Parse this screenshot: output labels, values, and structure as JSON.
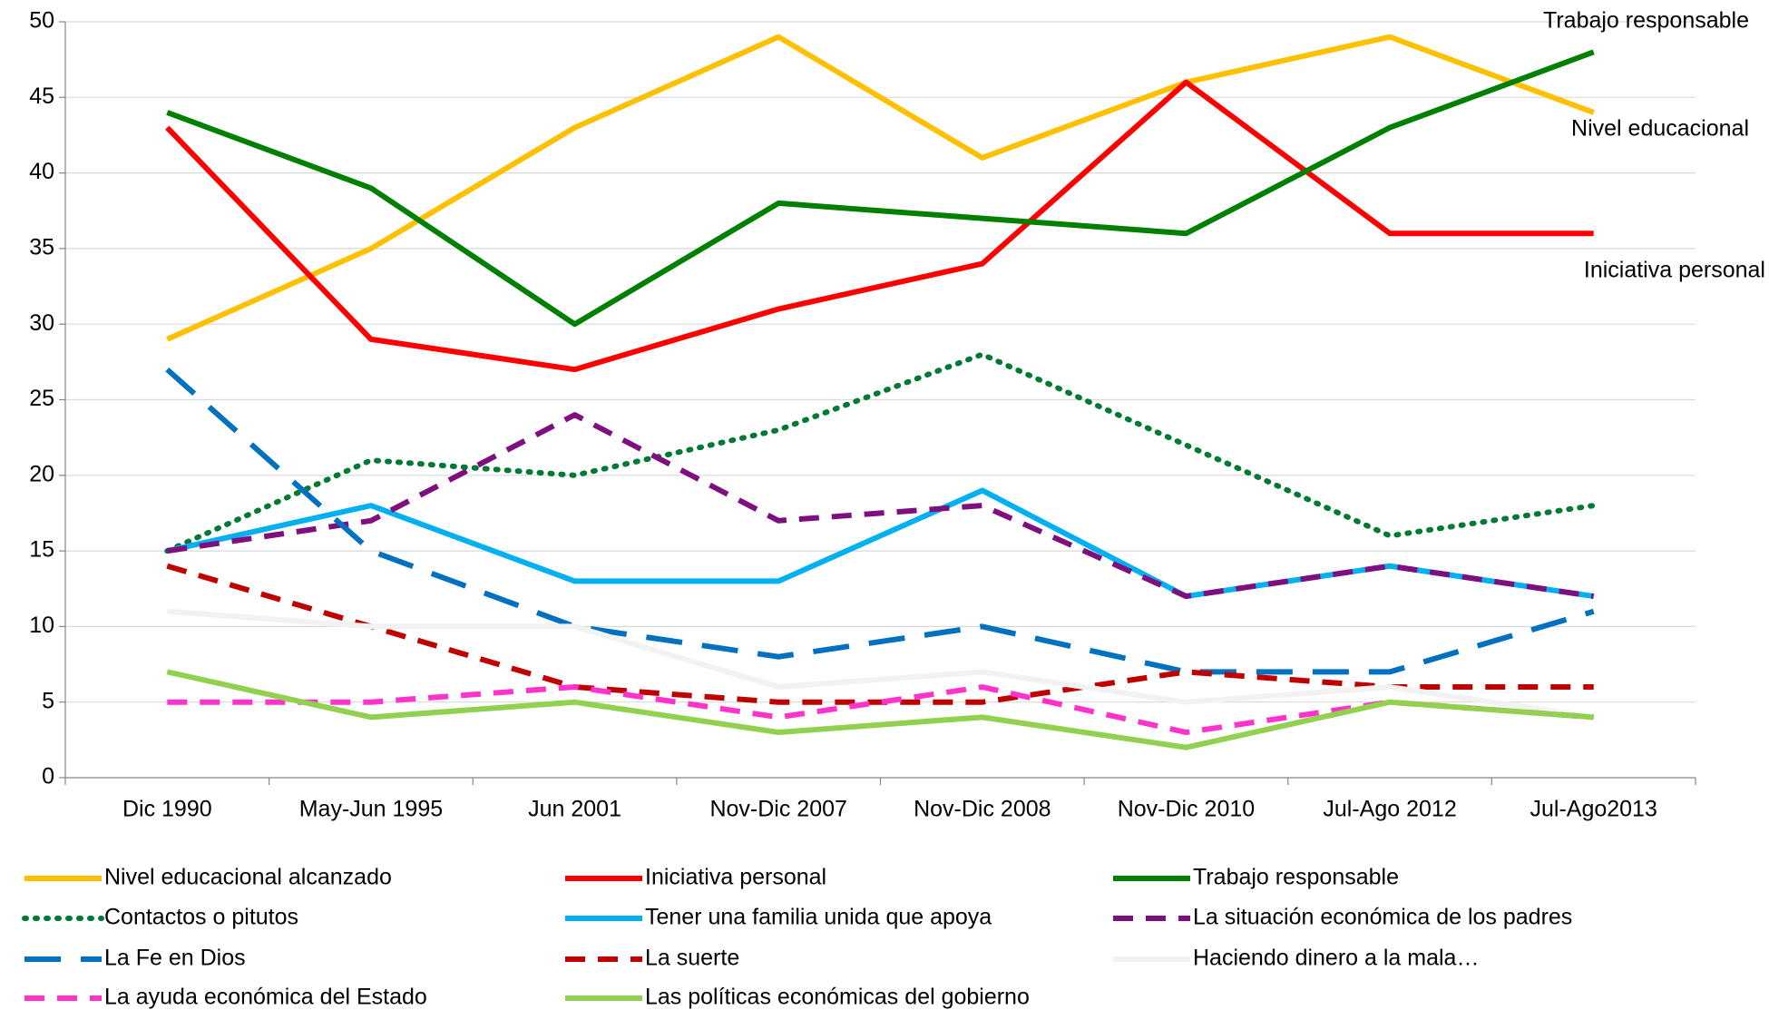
{
  "chart_data": {
    "type": "line",
    "categories": [
      "Dic 1990",
      "May-Jun 1995",
      "Jun 2001",
      "Nov-Dic 2007",
      "Nov-Dic 2008",
      "Nov-Dic 2010",
      "Jul-Ago 2012",
      "Jul-Ago2013"
    ],
    "ylim": [
      0,
      50
    ],
    "yticks": [
      0,
      5,
      10,
      15,
      20,
      25,
      30,
      35,
      40,
      45,
      50
    ],
    "grid": true,
    "annotations": [
      "Trabajo responsable",
      "Nivel educacional",
      "Iniciativa personal"
    ],
    "series": [
      {
        "name": "Nivel educacional alcanzado",
        "color": "#FFC000",
        "dash": "solid",
        "values": [
          29,
          35,
          43,
          49,
          41,
          46,
          49,
          44
        ]
      },
      {
        "name": "Iniciativa personal",
        "color": "#FF0000",
        "dash": "solid",
        "values": [
          43,
          29,
          27,
          31,
          34,
          46,
          36,
          36
        ]
      },
      {
        "name": "Trabajo responsable",
        "color": "#008000",
        "dash": "solid",
        "values": [
          44,
          39,
          30,
          38,
          37,
          36,
          43,
          48
        ]
      },
      {
        "name": "Contactos o pitutos",
        "color": "#007A33",
        "dash": "dotted",
        "values": [
          15,
          21,
          20,
          23,
          28,
          22,
          16,
          18
        ]
      },
      {
        "name": "Tener una familia unida que apoya",
        "color": "#00B0F0",
        "dash": "solid",
        "values": [
          15,
          18,
          13,
          13,
          19,
          12,
          14,
          12
        ]
      },
      {
        "name": "La situación económica de los padres",
        "color": "#7F0F7F",
        "dash": "dashed",
        "values": [
          15,
          17,
          24,
          17,
          18,
          12,
          14,
          12
        ]
      },
      {
        "name": "La Fe en Dios",
        "color": "#0070C0",
        "dash": "longdash",
        "values": [
          27,
          15,
          10,
          8,
          10,
          7,
          7,
          11
        ]
      },
      {
        "name": "La suerte",
        "color": "#C00000",
        "dash": "dashed",
        "values": [
          14,
          10,
          6,
          5,
          5,
          7,
          6,
          6
        ]
      },
      {
        "name": "Haciendo dinero a la mala…",
        "color": "#F2F2F2",
        "dash": "solid",
        "values": [
          11,
          10,
          10,
          6,
          7,
          5,
          6,
          4
        ]
      },
      {
        "name": "La ayuda económica del Estado",
        "color": "#FF33CC",
        "dash": "dashed",
        "values": [
          5,
          5,
          6,
          4,
          6,
          3,
          5,
          4
        ]
      },
      {
        "name": "Las políticas económicas del gobierno",
        "color": "#92D050",
        "dash": "solid",
        "values": [
          7,
          4,
          5,
          3,
          4,
          2,
          5,
          4
        ]
      }
    ]
  }
}
